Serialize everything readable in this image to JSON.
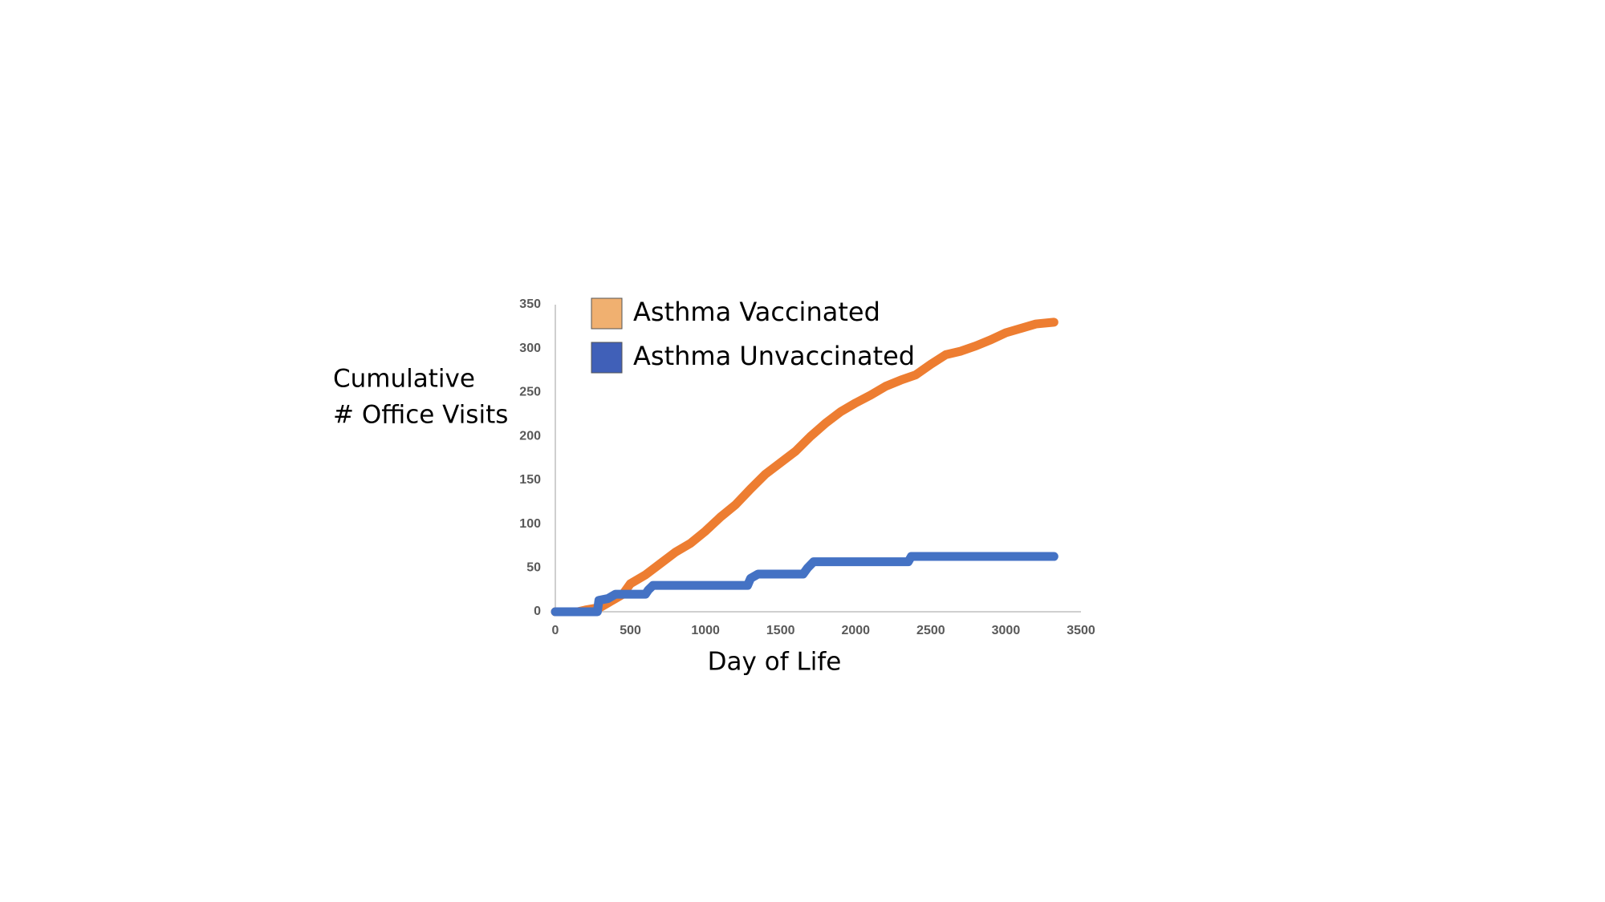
{
  "chart_data": {
    "type": "line",
    "ylabel": [
      "Cumulative",
      "# Office Visits"
    ],
    "xlabel": "Day of Life",
    "xlim": [
      0,
      3500
    ],
    "xticks": [
      0,
      500,
      1000,
      1500,
      2000,
      2500,
      3000,
      3500
    ],
    "ylim": [
      0,
      350
    ],
    "yticks": [
      0,
      50,
      100,
      150,
      200,
      250,
      300,
      350
    ],
    "grid": false,
    "legend": "upper left",
    "series": [
      {
        "name": "Asthma Vaccinated",
        "color": "#ed7d31",
        "legend_color": "#f0b070",
        "x": [
          0,
          150,
          200,
          300,
          400,
          450,
          500,
          600,
          700,
          800,
          900,
          1000,
          1100,
          1200,
          1300,
          1400,
          1500,
          1600,
          1700,
          1800,
          1900,
          2000,
          2100,
          2200,
          2300,
          2400,
          2500,
          2600,
          2700,
          2800,
          2900,
          3000,
          3100,
          3200,
          3320
        ],
        "values": [
          0,
          0,
          2,
          5,
          15,
          20,
          32,
          42,
          55,
          68,
          78,
          92,
          108,
          122,
          140,
          157,
          170,
          183,
          200,
          215,
          228,
          238,
          247,
          257,
          264,
          270,
          282,
          293,
          297,
          303,
          310,
          318,
          323,
          328,
          330
        ]
      },
      {
        "name": "Asthma Unvaccinated",
        "color": "#4472c4",
        "legend_color": "#4060b8",
        "x": [
          0,
          280,
          290,
          350,
          400,
          600,
          620,
          650,
          1280,
          1300,
          1350,
          1650,
          1680,
          1720,
          2350,
          2370,
          3320
        ],
        "values": [
          0,
          0,
          13,
          15,
          20,
          20,
          25,
          30,
          30,
          38,
          43,
          43,
          50,
          57,
          57,
          63,
          63
        ]
      }
    ]
  }
}
